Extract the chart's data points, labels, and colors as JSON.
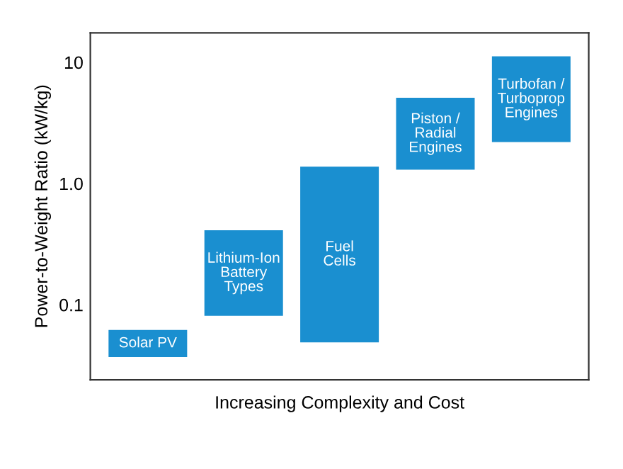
{
  "chart_data": {
    "type": "bar",
    "ylabel": "Power-to-Weight Ratio (kW/kg)",
    "xlabel": "Increasing Complexity and Cost",
    "categories": [
      "Solar PV",
      "Lithium-Ion\nBattery\nTypes",
      "Fuel\nCells",
      "Piston /\nRadial\nEngines",
      "Turbofan /\nTurboprop\nEngines"
    ],
    "base": [
      0.037,
      0.081,
      0.049,
      1.3,
      2.2
    ],
    "values": [
      0.025,
      0.33,
      1.33,
      3.8,
      9
    ],
    "color": "#1a8fd0",
    "log": "y",
    "ylim": [
      0.024,
      17.5
    ],
    "yticks": [
      {
        "value": 0.1,
        "label": "0.1"
      },
      {
        "value": 1,
        "label": "1.0"
      },
      10
    ],
    "tick_labels": "y",
    "grid": false
  }
}
